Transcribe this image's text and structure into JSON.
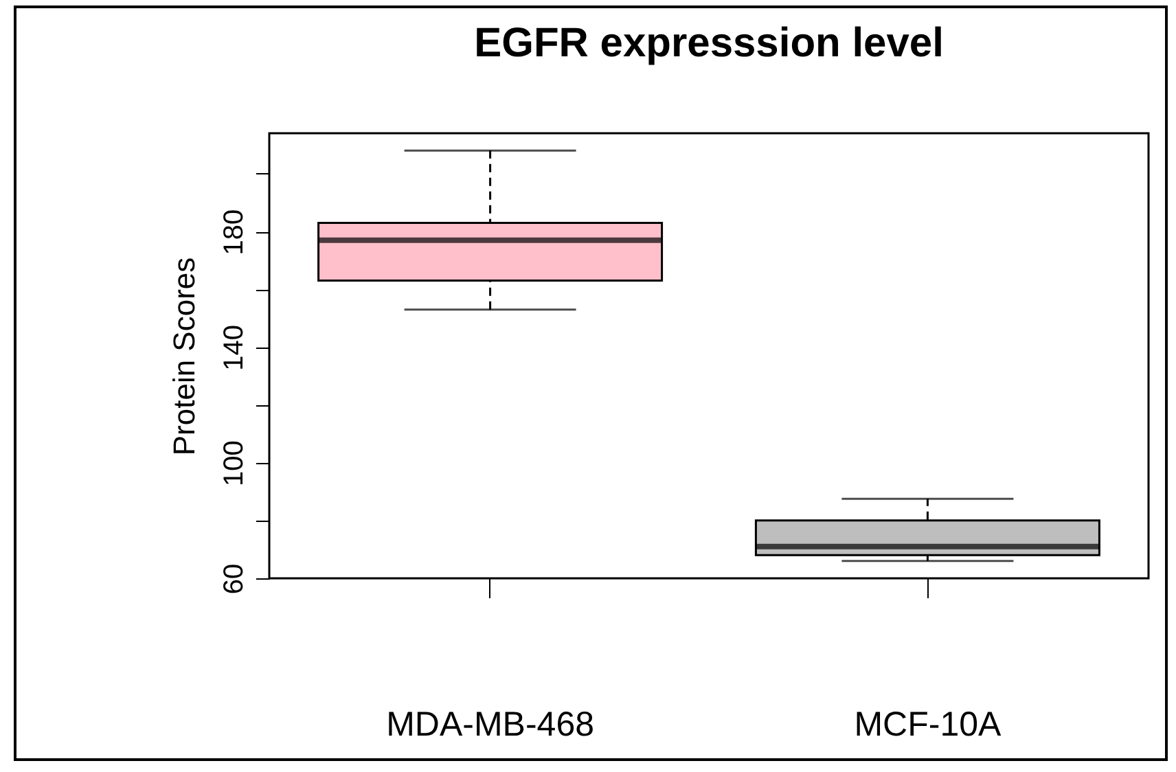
{
  "chart_data": {
    "type": "box",
    "title": "EGFR expresssion level",
    "ylabel": "Protein Scores",
    "categories": [
      "MDA-MB-468",
      "MCF-10A"
    ],
    "boxes": [
      {
        "low": 153,
        "q1": 163,
        "median": 177,
        "q3": 183,
        "high": 208
      },
      {
        "low": 66,
        "q1": 68,
        "median": 71,
        "q3": 80,
        "high": 87.5
      }
    ],
    "colors": [
      "#ffc0cb",
      "#bebebe"
    ],
    "ylim": [
      60,
      214
    ],
    "yticks": [
      60,
      {
        "value": 80,
        "label": null
      },
      100,
      {
        "value": 120,
        "label": null
      },
      140,
      {
        "value": 160,
        "label": null
      },
      180,
      {
        "value": 200,
        "label": null
      }
    ],
    "grid": false
  }
}
